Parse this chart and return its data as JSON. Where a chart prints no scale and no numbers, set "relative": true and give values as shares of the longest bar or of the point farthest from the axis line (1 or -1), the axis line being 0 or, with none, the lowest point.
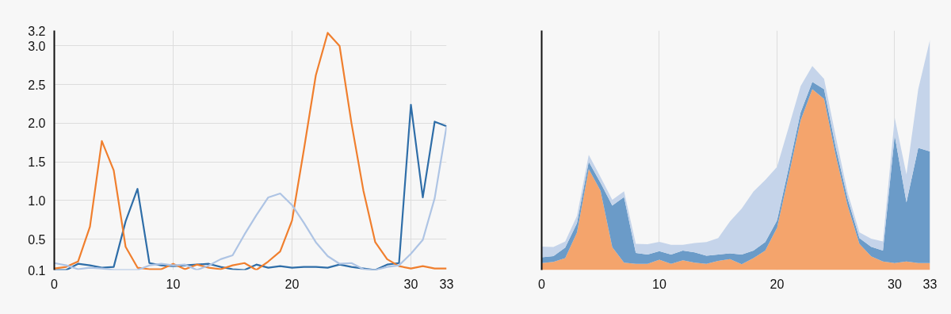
{
  "chart_data": [
    {
      "type": "line",
      "x": [
        0,
        1,
        2,
        3,
        4,
        5,
        6,
        7,
        8,
        9,
        10,
        11,
        12,
        13,
        14,
        15,
        16,
        17,
        18,
        19,
        20,
        21,
        22,
        23,
        24,
        25,
        26,
        27,
        28,
        29,
        30,
        31,
        32,
        33
      ],
      "xlim": [
        0,
        33
      ],
      "xticks": [
        0,
        10,
        20,
        30,
        33
      ],
      "ylim": [
        0.1,
        3.2
      ],
      "yticks": [
        0.1,
        0.5,
        {
          "value": 1,
          "label": "1.0"
        },
        1.5,
        {
          "value": 2,
          "label": "2.0"
        },
        2.5,
        {
          "value": 3,
          "label": "3.0"
        },
        3.2
      ],
      "grid": true,
      "marker": "none",
      "line_style": "solid",
      "series": [
        {
          "color": "#2f6ea8",
          "values": [
            0.1,
            0.1,
            0.18,
            0.16,
            0.13,
            0.14,
            0.73,
            1.15,
            0.19,
            0.16,
            0.15,
            0.16,
            0.17,
            0.18,
            0.14,
            0.11,
            0.1,
            0.17,
            0.13,
            0.15,
            0.13,
            0.14,
            0.14,
            0.13,
            0.17,
            0.14,
            0.12,
            0.1,
            0.17,
            0.19,
            2.24,
            1.04,
            2.02,
            1.96
          ]
        },
        {
          "color": "#f07f2e",
          "values": [
            0.12,
            0.14,
            0.21,
            0.66,
            1.77,
            1.39,
            0.4,
            0.13,
            0.11,
            0.11,
            0.18,
            0.11,
            0.17,
            0.13,
            0.11,
            0.16,
            0.19,
            0.1,
            0.21,
            0.34,
            0.74,
            1.66,
            2.62,
            3.17,
            3.0,
            2.0,
            1.13,
            0.46,
            0.24,
            0.15,
            0.12,
            0.15,
            0.12,
            0.12
          ]
        },
        {
          "color": "#aec4e4",
          "values": [
            0.19,
            0.16,
            0.11,
            0.13,
            0.12,
            0.1,
            0.1,
            0.1,
            0.16,
            0.18,
            0.16,
            0.17,
            0.1,
            0.16,
            0.24,
            0.29,
            0.56,
            0.81,
            1.04,
            1.09,
            0.94,
            0.71,
            0.46,
            0.28,
            0.18,
            0.19,
            0.11,
            0.1,
            0.14,
            0.16,
            0.31,
            0.49,
            1.03,
            1.96
          ]
        }
      ]
    },
    {
      "type": "area",
      "stacked": true,
      "relative": true,
      "x": [
        0,
        1,
        2,
        3,
        4,
        5,
        6,
        7,
        8,
        9,
        10,
        11,
        12,
        13,
        14,
        15,
        16,
        17,
        18,
        19,
        20,
        21,
        22,
        23,
        24,
        25,
        26,
        27,
        28,
        29,
        30,
        31,
        32,
        33
      ],
      "xlim": [
        0,
        33
      ],
      "xticks": [
        0,
        10,
        20,
        30,
        33
      ],
      "grid": "x",
      "tick_labels": "x",
      "series": [
        {
          "color": "#f4a46c",
          "values": [
            0.03,
            0.035,
            0.052,
            0.163,
            0.438,
            0.344,
            0.099,
            0.032,
            0.027,
            0.027,
            0.045,
            0.027,
            0.042,
            0.032,
            0.027,
            0.04,
            0.047,
            0.025,
            0.052,
            0.084,
            0.183,
            0.411,
            0.649,
            0.785,
            0.743,
            0.495,
            0.28,
            0.114,
            0.059,
            0.037,
            0.03,
            0.037,
            0.03,
            0.03
          ]
        },
        {
          "color": "#6b9bc8",
          "values": [
            0.025,
            0.025,
            0.045,
            0.04,
            0.032,
            0.035,
            0.181,
            0.285,
            0.047,
            0.04,
            0.037,
            0.04,
            0.042,
            0.045,
            0.035,
            0.027,
            0.025,
            0.042,
            0.032,
            0.037,
            0.032,
            0.035,
            0.035,
            0.032,
            0.042,
            0.035,
            0.03,
            0.025,
            0.042,
            0.047,
            0.554,
            0.257,
            0.5,
            0.485
          ]
        },
        {
          "color": "#c5d4ea",
          "values": [
            0.047,
            0.04,
            0.027,
            0.032,
            0.03,
            0.025,
            0.025,
            0.025,
            0.04,
            0.045,
            0.04,
            0.042,
            0.025,
            0.04,
            0.059,
            0.072,
            0.139,
            0.2,
            0.257,
            0.27,
            0.233,
            0.176,
            0.114,
            0.069,
            0.045,
            0.047,
            0.027,
            0.025,
            0.035,
            0.04,
            0.077,
            0.121,
            0.255,
            0.485
          ]
        }
      ]
    }
  ]
}
